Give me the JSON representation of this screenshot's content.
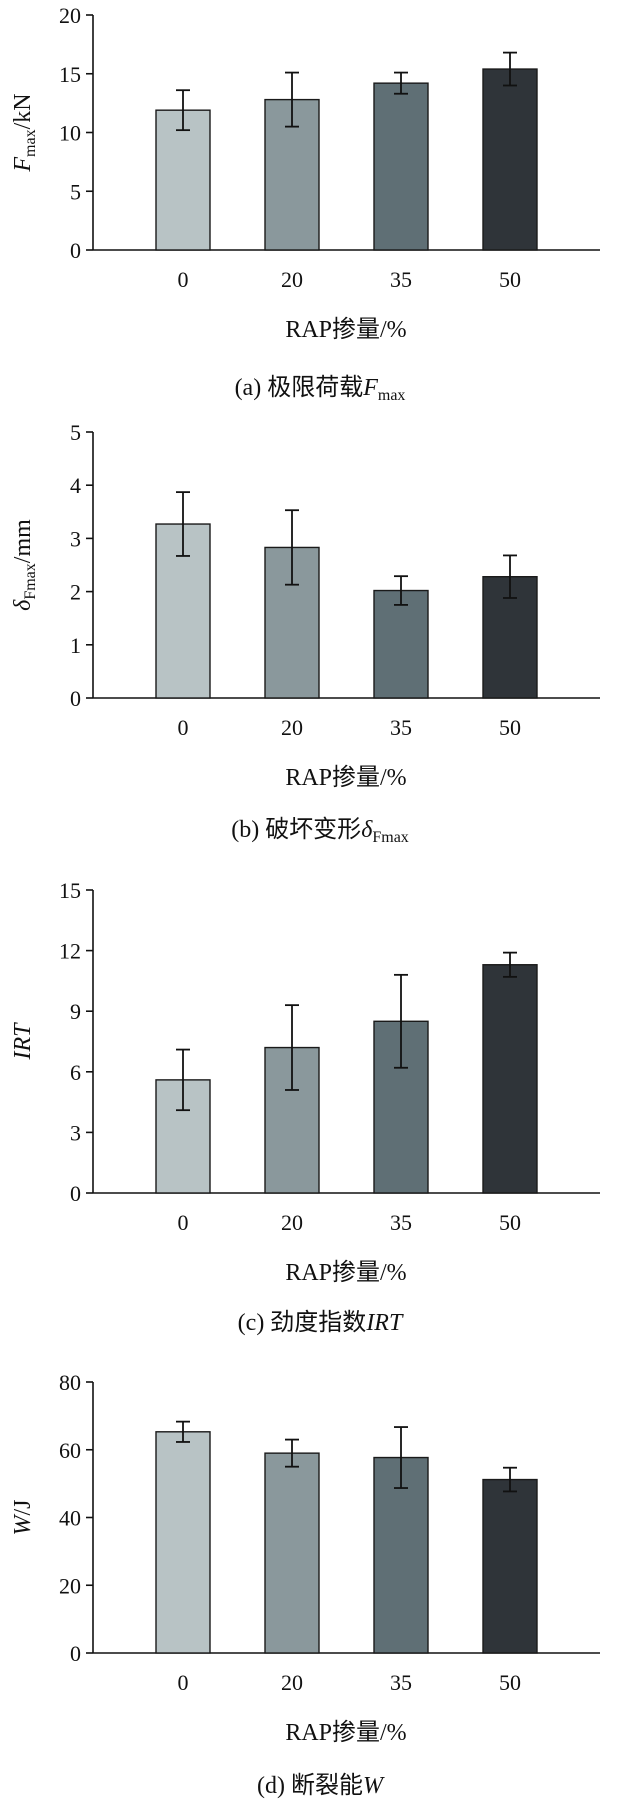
{
  "colors": [
    "#b8c3c5",
    "#8a989c",
    "#5f6f75",
    "#2f3439"
  ],
  "chart_data": [
    {
      "type": "bar",
      "categories": [
        "0",
        "20",
        "35",
        "50"
      ],
      "values": [
        11.9,
        12.8,
        14.2,
        15.4
      ],
      "errors": [
        1.7,
        2.3,
        0.9,
        1.4
      ],
      "ylim": [
        0,
        20
      ],
      "yticks": [
        "0",
        "5",
        "10",
        "15",
        "20"
      ],
      "ylabel": {
        "main": "F",
        "sub": "max",
        "tail": "/kN"
      },
      "xlabel": "RAP掺量/%",
      "caption": {
        "prefix": "(a) 极限荷载",
        "italic": "F",
        "sub": "max"
      }
    },
    {
      "type": "bar",
      "categories": [
        "0",
        "20",
        "35",
        "50"
      ],
      "values": [
        3.27,
        2.83,
        2.02,
        2.28
      ],
      "errors": [
        0.6,
        0.7,
        0.27,
        0.4
      ],
      "ylim": [
        0,
        5
      ],
      "yticks": [
        "0",
        "1",
        "2",
        "3",
        "4",
        "5"
      ],
      "ylabel": {
        "main": "δ",
        "sub": "Fmax",
        "tail": "/mm"
      },
      "xlabel": "RAP掺量/%",
      "caption": {
        "prefix": "(b) 破坏变形",
        "italic": "δ",
        "sub": "Fmax"
      }
    },
    {
      "type": "bar",
      "categories": [
        "0",
        "20",
        "35",
        "50"
      ],
      "values": [
        5.6,
        7.2,
        8.5,
        11.3
      ],
      "errors": [
        1.5,
        2.1,
        2.3,
        0.6
      ],
      "ylim": [
        0,
        15
      ],
      "yticks": [
        "0",
        "3",
        "6",
        "9",
        "12",
        "15"
      ],
      "ylabel": {
        "main": "IRT",
        "sub": "",
        "tail": ""
      },
      "xlabel": "RAP掺量/%",
      "caption": {
        "prefix": "(c) 劲度指数",
        "italic": "IRT",
        "sub": ""
      }
    },
    {
      "type": "bar",
      "categories": [
        "0",
        "20",
        "35",
        "50"
      ],
      "values": [
        65.3,
        59.0,
        57.7,
        51.2
      ],
      "errors": [
        3.0,
        4.0,
        9.0,
        3.5
      ],
      "ylim": [
        0,
        80
      ],
      "yticks": [
        "0",
        "20",
        "40",
        "60",
        "80"
      ],
      "ylabel": {
        "main": "W",
        "sub": "",
        "tail": "/J"
      },
      "xlabel": "RAP掺量/%",
      "caption": {
        "prefix": "(d) 断裂能",
        "italic": "W",
        "sub": ""
      }
    }
  ]
}
